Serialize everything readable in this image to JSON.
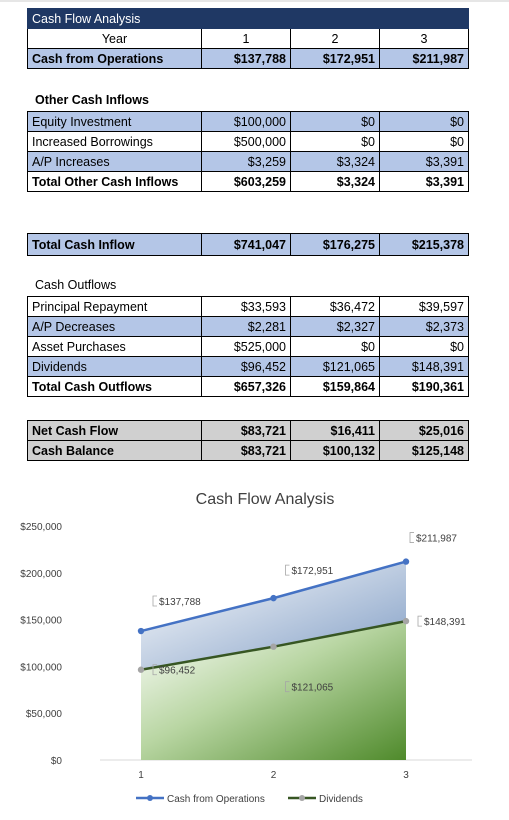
{
  "sheet": {
    "title": "Cash Flow Analysis",
    "year_label": "Year",
    "years": [
      "1",
      "2",
      "3"
    ],
    "ops": {
      "label": "Cash from Operations",
      "values": [
        "$137,788",
        "$172,951",
        "$211,987"
      ]
    },
    "other_header": "Other Cash Inflows",
    "inflows": [
      {
        "label": "Equity Investment",
        "values": [
          "$100,000",
          "$0",
          "$0"
        ]
      },
      {
        "label": "Increased Borrowings",
        "values": [
          "$500,000",
          "$0",
          "$0"
        ]
      },
      {
        "label": "A/P Increases",
        "values": [
          "$3,259",
          "$3,324",
          "$3,391"
        ]
      }
    ],
    "total_other": {
      "label": "Total Other Cash Inflows",
      "values": [
        "$603,259",
        "$3,324",
        "$3,391"
      ]
    },
    "total_inflow": {
      "label": "Total Cash Inflow",
      "values": [
        "$741,047",
        "$176,275",
        "$215,378"
      ]
    },
    "outflows_header": "Cash Outflows",
    "outflows": [
      {
        "label": "Principal Repayment",
        "values": [
          "$33,593",
          "$36,472",
          "$39,597"
        ]
      },
      {
        "label": "A/P Decreases",
        "values": [
          "$2,281",
          "$2,327",
          "$2,373"
        ]
      },
      {
        "label": "Asset Purchases",
        "values": [
          "$525,000",
          "$0",
          "$0"
        ]
      },
      {
        "label": "Dividends",
        "values": [
          "$96,452",
          "$121,065",
          "$148,391"
        ]
      }
    ],
    "total_outflows": {
      "label": "Total Cash Outflows",
      "values": [
        "$657,326",
        "$159,864",
        "$190,361"
      ]
    },
    "net": {
      "label": "Net Cash Flow",
      "values": [
        "$83,721",
        "$16,411",
        "$25,016"
      ]
    },
    "balance": {
      "label": "Cash Balance",
      "values": [
        "$83,721",
        "$100,132",
        "$125,148"
      ]
    }
  },
  "chart_data": {
    "type": "line",
    "title": "Cash Flow Analysis",
    "x": [
      1,
      2,
      3
    ],
    "x_tick_labels": [
      "1",
      "2",
      "3"
    ],
    "ylim": [
      0,
      250000
    ],
    "y_tick_labels": [
      "$0",
      "$50,000",
      "$100,000",
      "$150,000",
      "$200,000",
      "$250,000"
    ],
    "series": [
      {
        "name": "Cash from Operations",
        "values": [
          137788,
          172951,
          211987
        ],
        "labels": [
          "$137,788",
          "$172,951",
          "$211,987"
        ],
        "color": "#4472c4",
        "fill_color": "#7f9cc4"
      },
      {
        "name": "Dividends",
        "values": [
          96452,
          121065,
          148391
        ],
        "labels": [
          "$96,452",
          "$121,065",
          "$148,391"
        ],
        "color": "#375623",
        "marker_color": "#a5a5a5",
        "fill_color": "#4f8a2b"
      }
    ],
    "legend_position": "bottom",
    "grid": false
  }
}
